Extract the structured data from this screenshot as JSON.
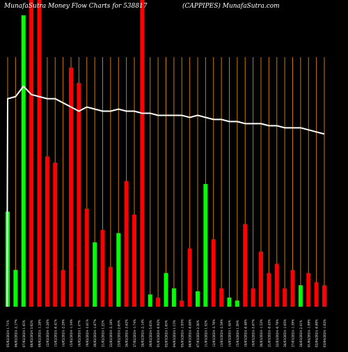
{
  "header": {
    "left": "MunafaSutra  Money Flow  Charts for 538817",
    "right": "(CAPPIPES) MunafaSutra.com"
  },
  "colors": {
    "background": "#000000",
    "up": "#00ff00",
    "down": "#ff0000",
    "gridline": "#cc7a00",
    "line": "#ffffff",
    "text": "#ffffff"
  },
  "chart_data": {
    "type": "bar",
    "title": "MunafaSutra  Money Flow  Charts for 538817",
    "subtitle": "(CAPPIPES) MunafaSutra.com",
    "grid": true,
    "ylim": [
      0,
      100
    ],
    "categories": [
      "05/02/2024 1.71%",
      "06/02/2024 -2.17%",
      "07/02/2024 1.45%",
      "08/02/2024 3.02%",
      "09/02/2024 -1.28%",
      "12/02/2024 -5.26%",
      "13/02/2024 -0.41%",
      "14/02/2024 -2.29%",
      "15/02/2024 -1.34%",
      "16/02/2024 1.47%",
      "19/02/2024 -3.61%",
      "20/02/2024 -1.87%",
      "21/02/2024 1.22%",
      "22/02/2024 -2.18%",
      "23/02/2024 2.65%",
      "26/02/2024 -3.62%",
      "27/02/2024 -1.74%",
      "28/02/2024 -2.14%",
      "29/02/2024 5.03%",
      "01/03/2024 -0.92%",
      "02/03/2024 1.65%",
      "04/03/2024 1.15%",
      "05/03/2024 -1.93%",
      "06/03/2024 -0.88%",
      "07/03/2024 2.38%",
      "11/03/2024 1.52%",
      "12/03/2024 -3.70%",
      "13/03/2024 -2.59%",
      "14/03/2024 1.44%",
      "15/03/2024 1.59%",
      "18/03/2024 -0.40%",
      "19/03/2024 -5.07%",
      "20/03/2024 -1.52%",
      "21/03/2024 -0.45%",
      "22/03/2024 -0.70%",
      "26/03/2024 -1.05%",
      "27/03/2024 -1.39%",
      "28/03/2024 2.41%",
      "01/04/2024 -1.99%",
      "02/04/2024 -0.80%",
      "03/04/2024 -1.02%"
    ],
    "up": [
      true,
      true,
      true,
      false,
      false,
      false,
      false,
      false,
      false,
      false,
      false,
      true,
      false,
      false,
      true,
      false,
      false,
      false,
      true,
      false,
      true,
      true,
      false,
      false,
      true,
      true,
      false,
      false,
      true,
      true,
      false,
      false,
      false,
      false,
      false,
      false,
      false,
      true,
      false,
      false,
      false
    ],
    "values": [
      31,
      12,
      95,
      100,
      100,
      49,
      47,
      12,
      78,
      73,
      32,
      21,
      25,
      13,
      24,
      41,
      30,
      100,
      4,
      3,
      11,
      6,
      2,
      19,
      5,
      40,
      22,
      6,
      3,
      2,
      27,
      6,
      18,
      11,
      14,
      6,
      12,
      7,
      11,
      8,
      7
    ],
    "line": {
      "name": "",
      "values": [
        80,
        81,
        86,
        82,
        81,
        80,
        80,
        78,
        76,
        74,
        76,
        75,
        74,
        74,
        75,
        74,
        74,
        73,
        73,
        72,
        72,
        72,
        72,
        71,
        72,
        71,
        70,
        70,
        69,
        69,
        68,
        68,
        68,
        67,
        67,
        66,
        66,
        66,
        65,
        64,
        63
      ]
    },
    "line_start": 80
  }
}
